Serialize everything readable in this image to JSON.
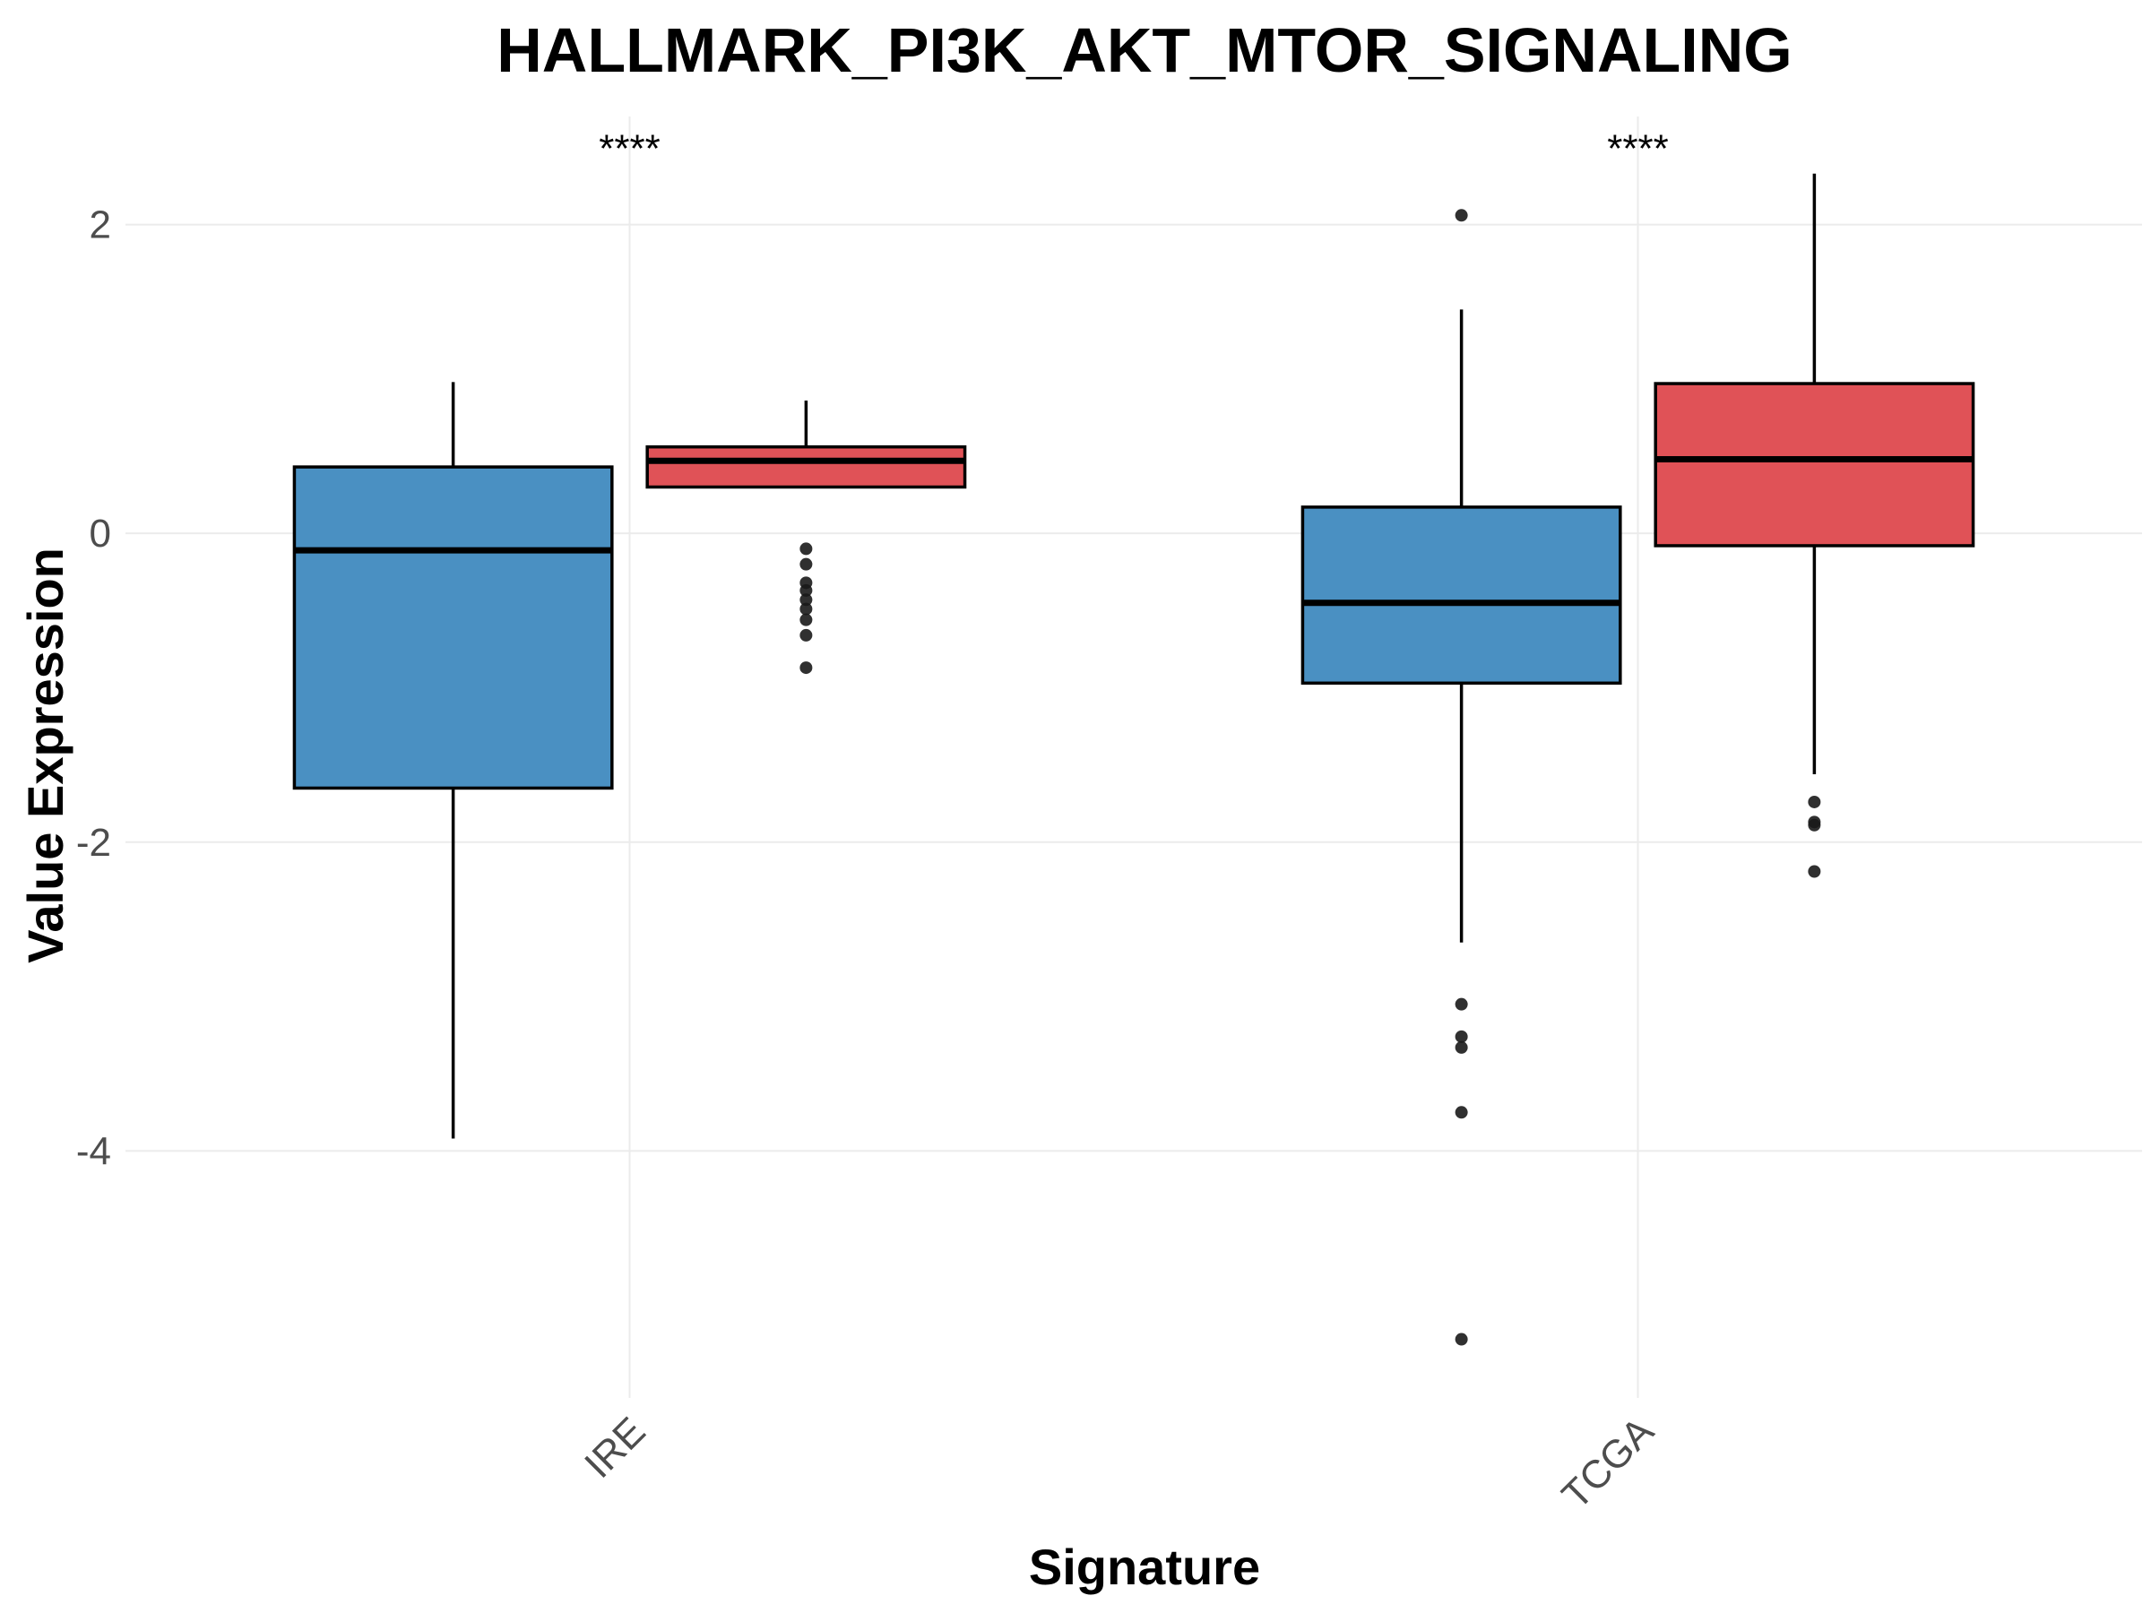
{
  "chart_data": {
    "type": "box",
    "title": "HALLMARK_PI3K_AKT_MTOR_SIGNALING",
    "xlabel": "Signature",
    "ylabel": "Value Expression",
    "categories": [
      "IRE",
      "TCGA"
    ],
    "ylim": [
      -5.6,
      2.7
    ],
    "yticks": [
      -4,
      -2,
      0,
      2
    ],
    "grid": true,
    "legend": "none",
    "annotations": [
      {
        "category": "IRE",
        "text": "****",
        "y": 2.5
      },
      {
        "category": "TCGA",
        "text": "****",
        "y": 2.5
      }
    ],
    "series": [
      {
        "color": "#4a90c2",
        "boxes": [
          {
            "category": "IRE",
            "q1": -1.65,
            "median": -0.11,
            "q3": 0.43,
            "whisker_low": -3.92,
            "whisker_high": 0.98,
            "outliers": []
          },
          {
            "category": "TCGA",
            "q1": -0.97,
            "median": -0.45,
            "q3": 0.17,
            "whisker_low": -2.65,
            "whisker_high": 1.45,
            "outliers": [
              2.06,
              -3.05,
              -3.26,
              -3.33,
              -3.75,
              -5.22
            ]
          }
        ]
      },
      {
        "color": "#e05257",
        "boxes": [
          {
            "category": "IRE",
            "q1": 0.3,
            "median": 0.47,
            "q3": 0.56,
            "whisker_low": 0.3,
            "whisker_high": 0.86,
            "outliers": [
              -0.1,
              -0.2,
              -0.32,
              -0.37,
              -0.43,
              -0.49,
              -0.56,
              -0.66,
              -0.87
            ]
          },
          {
            "category": "TCGA",
            "q1": -0.08,
            "median": 0.48,
            "q3": 0.97,
            "whisker_low": -1.56,
            "whisker_high": 2.33,
            "outliers": [
              -1.74,
              -1.87,
              -1.89,
              -2.19
            ]
          }
        ]
      }
    ]
  }
}
